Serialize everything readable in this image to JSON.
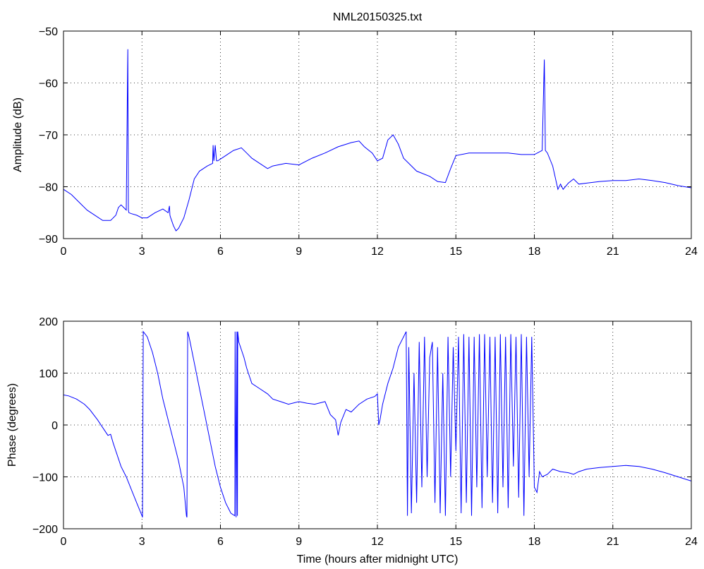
{
  "chart_data": [
    {
      "type": "line",
      "title": "NML20150325.txt",
      "xlabel": "",
      "ylabel": "Amplitude (dB)",
      "xlim": [
        0,
        24
      ],
      "ylim": [
        -90,
        -50
      ],
      "xticks": [
        0,
        3,
        6,
        9,
        12,
        15,
        18,
        21,
        24
      ],
      "yticks": [
        -90,
        -80,
        -70,
        -60,
        -50
      ],
      "grid": true,
      "color": "#0000ff",
      "series": [
        {
          "x": [
            0,
            0.3,
            0.6,
            0.9,
            1.2,
            1.5,
            1.8,
            2.0,
            2.1,
            2.2,
            2.3,
            2.4,
            2.45,
            2.46,
            2.48,
            2.5,
            2.6,
            2.8,
            3.0,
            3.2,
            3.5,
            3.8,
            4.0,
            4.05,
            4.07,
            4.1,
            4.2,
            4.3,
            4.4,
            4.6,
            4.8,
            5.0,
            5.2,
            5.5,
            5.7,
            5.72,
            5.75,
            5.8,
            5.85,
            5.9,
            6.2,
            6.5,
            6.8,
            7.0,
            7.2,
            7.5,
            7.8,
            8.0,
            8.5,
            9.0,
            9.5,
            10.0,
            10.5,
            11.0,
            11.3,
            11.5,
            11.8,
            12.0,
            12.2,
            12.4,
            12.6,
            12.8,
            13.0,
            13.2,
            13.5,
            14.0,
            14.3,
            14.6,
            14.8,
            15.0,
            15.5,
            16.0,
            16.5,
            17.0,
            17.5,
            18.0,
            18.3,
            18.38,
            18.4,
            18.42,
            18.5,
            18.7,
            18.9,
            19.0,
            19.1,
            19.3,
            19.5,
            19.7,
            20.0,
            20.5,
            21.0,
            21.5,
            22.0,
            22.5,
            23.0,
            23.5,
            24.0
          ],
          "y": [
            -80.5,
            -81.5,
            -83,
            -84.5,
            -85.5,
            -86.5,
            -86.5,
            -85.5,
            -84,
            -83.5,
            -84,
            -84.5,
            -57,
            -53.5,
            -84.5,
            -85,
            -85.2,
            -85.5,
            -86,
            -86,
            -85,
            -84.3,
            -85,
            -83.7,
            -85.5,
            -86,
            -87.5,
            -88.5,
            -88,
            -86,
            -82.5,
            -78.5,
            -77,
            -76,
            -75.5,
            -72,
            -75,
            -72,
            -75,
            -75,
            -74,
            -73,
            -72.5,
            -73.5,
            -74.5,
            -75.5,
            -76.5,
            -76,
            -75.5,
            -75.8,
            -74.5,
            -73.5,
            -72.3,
            -71.5,
            -71.2,
            -72.3,
            -73.5,
            -75,
            -74.5,
            -71,
            -70,
            -71.8,
            -74.5,
            -75.5,
            -77,
            -78,
            -79,
            -79.2,
            -76.5,
            -74,
            -73.5,
            -73.5,
            -73.5,
            -73.5,
            -73.8,
            -73.8,
            -73,
            -55.5,
            -62,
            -73,
            -73.5,
            -76,
            -80.5,
            -79.5,
            -80.5,
            -79.3,
            -78.5,
            -79.5,
            -79.3,
            -79,
            -78.8,
            -78.8,
            -78.5,
            -78.8,
            -79.2,
            -79.8,
            -80.2
          ]
        }
      ]
    },
    {
      "type": "line",
      "title": "",
      "xlabel": "Time (hours after midnight UTC)",
      "ylabel": "Phase (degrees)",
      "xlim": [
        0,
        24
      ],
      "ylim": [
        -200,
        200
      ],
      "xticks": [
        0,
        3,
        6,
        9,
        12,
        15,
        18,
        21,
        24
      ],
      "yticks": [
        -200,
        -100,
        0,
        100,
        200
      ],
      "grid": true,
      "color": "#0000ff",
      "series": [
        {
          "x": [
            0,
            0.2,
            0.5,
            0.8,
            1.0,
            1.3,
            1.5,
            1.7,
            1.8,
            1.9,
            2.0,
            2.2,
            2.4,
            2.6,
            2.8,
            3.0,
            3.02,
            3.05,
            3.2,
            3.4,
            3.6,
            3.8,
            4.0,
            4.2,
            4.4,
            4.6,
            4.7,
            4.72,
            4.75,
            4.8,
            5.0,
            5.2,
            5.4,
            5.6,
            5.8,
            6.0,
            6.2,
            6.4,
            6.55,
            6.56,
            6.6,
            6.63,
            6.65,
            6.66,
            6.7,
            6.9,
            7.0,
            7.2,
            7.5,
            7.8,
            8.0,
            8.3,
            8.6,
            9.0,
            9.3,
            9.6,
            10.0,
            10.2,
            10.4,
            10.5,
            10.6,
            10.8,
            11.0,
            11.3,
            11.6,
            11.9,
            12.0,
            12.05,
            12.1,
            12.2,
            12.4,
            12.6,
            12.8,
            13.0,
            13.1,
            13.15,
            13.2,
            13.3,
            13.4,
            13.5,
            13.6,
            13.7,
            13.8,
            13.9,
            14.0,
            14.1,
            14.2,
            14.3,
            14.4,
            14.5,
            14.6,
            14.7,
            14.8,
            14.9,
            15.0,
            15.1,
            15.2,
            15.3,
            15.4,
            15.5,
            15.6,
            15.7,
            15.8,
            15.9,
            16.0,
            16.1,
            16.2,
            16.3,
            16.4,
            16.5,
            16.6,
            16.7,
            16.8,
            16.9,
            17.0,
            17.1,
            17.2,
            17.3,
            17.4,
            17.5,
            17.6,
            17.7,
            17.8,
            17.9,
            18.0,
            18.1,
            18.2,
            18.3,
            18.5,
            18.7,
            19.0,
            19.3,
            19.5,
            19.7,
            20.0,
            20.5,
            21.0,
            21.5,
            22.0,
            22.5,
            23.0,
            23.5,
            24.0
          ],
          "y": [
            58,
            56,
            50,
            40,
            30,
            10,
            -5,
            -20,
            -18,
            -35,
            -50,
            -80,
            -100,
            -125,
            -150,
            -175,
            -178,
            180,
            170,
            140,
            100,
            50,
            10,
            -30,
            -70,
            -120,
            -175,
            -178,
            180,
            170,
            120,
            70,
            20,
            -30,
            -80,
            -120,
            -150,
            -170,
            -175,
            180,
            -178,
            180,
            -175,
            180,
            160,
            130,
            110,
            80,
            70,
            60,
            50,
            45,
            40,
            45,
            42,
            40,
            45,
            20,
            10,
            -20,
            5,
            30,
            25,
            40,
            50,
            55,
            60,
            0,
            10,
            40,
            80,
            110,
            150,
            170,
            180,
            -175,
            150,
            -170,
            100,
            -150,
            160,
            -120,
            170,
            -100,
            130,
            160,
            -150,
            150,
            -170,
            100,
            -175,
            170,
            -100,
            150,
            -50,
            170,
            -170,
            175,
            -150,
            170,
            -175,
            170,
            -120,
            175,
            -160,
            175,
            -100,
            170,
            -150,
            170,
            -170,
            175,
            -120,
            170,
            -160,
            175,
            -80,
            170,
            -140,
            175,
            -175,
            170,
            -100,
            170,
            -120,
            -130,
            -90,
            -100,
            -95,
            -85,
            -90,
            -92,
            -95,
            -90,
            -85,
            -82,
            -80,
            -78,
            -80,
            -85,
            -92,
            -100,
            -108
          ]
        }
      ]
    }
  ]
}
